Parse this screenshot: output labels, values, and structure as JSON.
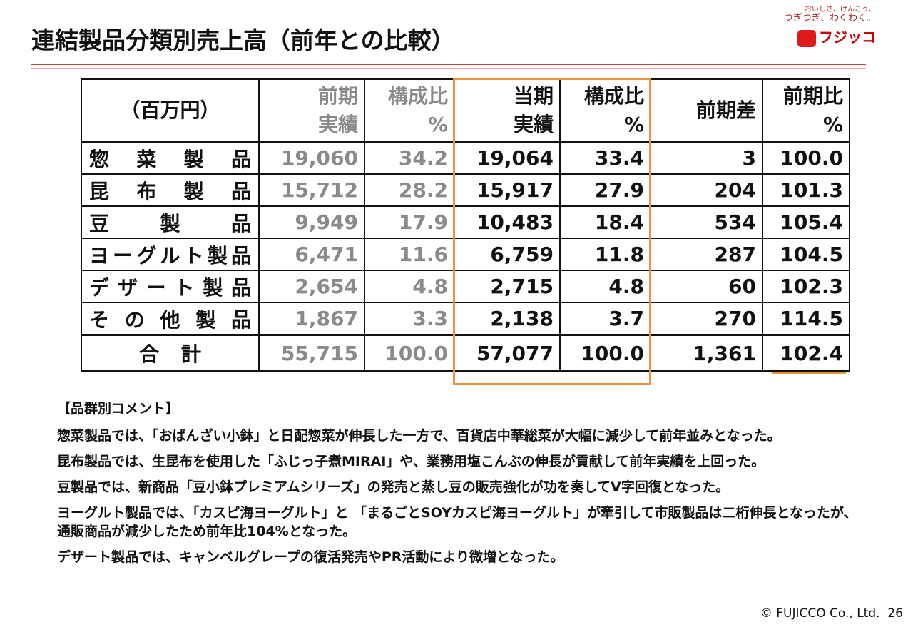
{
  "header": {
    "title": "連結製品分類別売上高（前年との比較）"
  },
  "logo": {
    "tagline": [
      "おいしさ、けんこう、",
      "つぎつぎ、わくわく。"
    ],
    "name": "フジッコ"
  },
  "table": {
    "header": [
      [
        "（百万円）"
      ],
      [
        "前期",
        "実績"
      ],
      [
        "構成比",
        "%"
      ],
      [
        "当期",
        "実績"
      ],
      [
        "構成比",
        "%"
      ],
      [
        "前期差"
      ],
      [
        "前期比",
        "%"
      ]
    ],
    "rows": [
      [
        "惣菜製品",
        "19,060",
        "34.2",
        "19,064",
        "33.4",
        "3",
        "100.0"
      ],
      [
        "昆布製品",
        "15,712",
        "28.2",
        "15,917",
        "27.9",
        "204",
        "101.3"
      ],
      [
        "豆製品",
        "9,949",
        "17.9",
        "10,483",
        "18.4",
        "534",
        "105.4"
      ],
      [
        "ヨーグルト製品",
        "6,471",
        "11.6",
        "6,759",
        "11.8",
        "287",
        "104.5"
      ],
      [
        "デザート製品",
        "2,654",
        "4.8",
        "2,715",
        "4.8",
        "60",
        "102.3"
      ],
      [
        "その他製品",
        "1,867",
        "3.3",
        "2,138",
        "3.7",
        "270",
        "114.5"
      ],
      [
        "合計",
        "55,715",
        "100.0",
        "57,077",
        "100.0",
        "1,361",
        "102.4"
      ]
    ]
  },
  "comments": {
    "heading": "【品群別コメント】",
    "items": [
      "惣菜製品では、「おばんざい小鉢」と日配惣菜が伸長した一方で、百貨店中華総菜が大幅に減少して前年並みとなった。",
      "昆布製品では、生昆布を使用した「ふじっ子煮MIRAI」や、業務用塩こんぶの伸長が貢献して前年実績を上回った。",
      "豆製品では、新商品「豆小鉢プレミアムシリーズ」の発売と蒸し豆の販売強化が功を奏してV字回復となった。",
      "ヨーグルト製品では、「カスピ海ヨーグルト」と 「まるごとSOYカスピ海ヨーグルト」が牽引して市販製品は二桁伸長となったが、通販商品が減少したため前年比104%となった。",
      "デザート製品では、キャンベルグレープの復活発売やPR活動により微増となった。"
    ]
  },
  "footer": {
    "copyright": "© FUJICCO Co., Ltd.",
    "page": "26"
  }
}
